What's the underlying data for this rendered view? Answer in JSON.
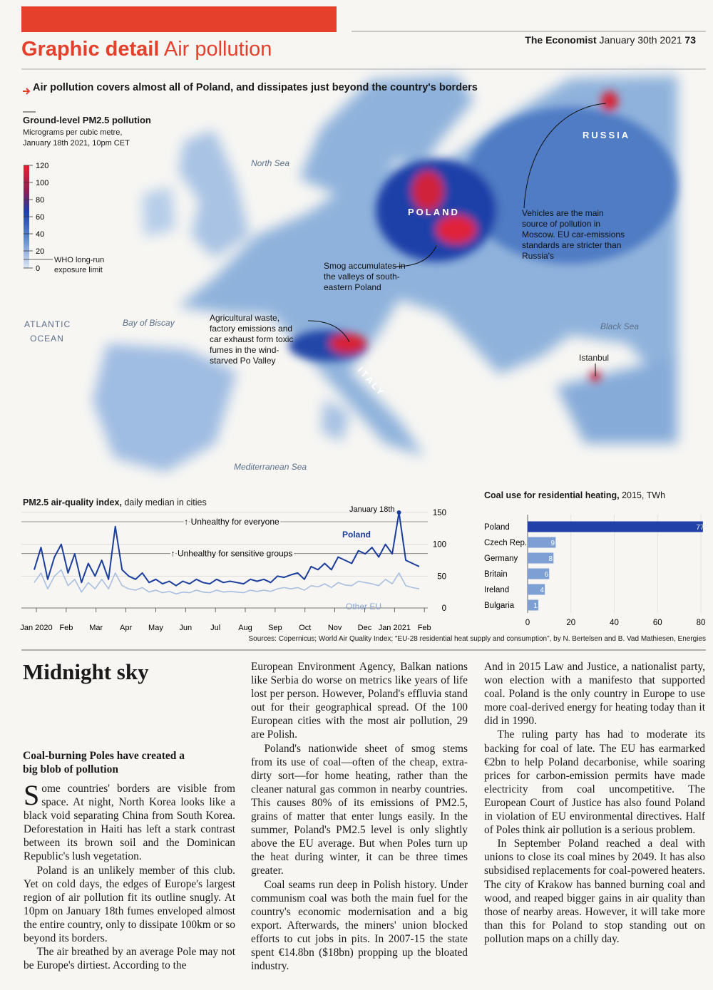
{
  "header": {
    "section": "Graphic detail",
    "topic": "Air pollution",
    "publication": "The Economist",
    "date": "January 30th 2021",
    "page": "73"
  },
  "map": {
    "headline": "Air pollution covers almost all of Poland, and dissipates just beyond the country's borders",
    "legend": {
      "title": "Ground-level PM2.5 pollution",
      "subtitle": "Micrograms per cubic metre, January 18th 2021, 10pm CET",
      "ticks": [
        0,
        20,
        40,
        60,
        80,
        100,
        120
      ],
      "limit_value": 10,
      "limit_label": "WHO long-run exposure limit"
    },
    "places": [
      "North Sea",
      "ATLANTIC OCEAN",
      "Bay of Biscay",
      "Mediterranean Sea",
      "Black Sea",
      "POLAND",
      "RUSSIA",
      "ITALY",
      "Istanbul"
    ],
    "annotations": [
      "Vehicles are the main source of pollution in Moscow. EU car-emissions standards are stricter than Russia's",
      "Smog accumulates in the valleys of south-eastern Poland",
      "Agricultural waste, factory emissions and car exhaust form toxic fumes in the wind-starved Po Valley"
    ]
  },
  "line_chart": {
    "type": "line",
    "title": "PM2.5 air-quality index,",
    "subtitle": "daily median in cities",
    "month_labels": [
      "Jan 2020",
      "Feb",
      "Mar",
      "Apr",
      "May",
      "Jun",
      "Jul",
      "Aug",
      "Sep",
      "Oct",
      "Nov",
      "Dec",
      "Jan 2021",
      "Feb"
    ],
    "series": [
      {
        "name": "Other EU",
        "color": "#a9bfe0",
        "values": [
          40,
          55,
          30,
          50,
          60,
          35,
          45,
          25,
          40,
          30,
          45,
          30,
          55,
          35,
          30,
          28,
          32,
          25,
          28,
          24,
          26,
          22,
          25,
          24,
          28,
          25,
          24,
          28,
          25,
          26,
          25,
          24,
          28,
          26,
          28,
          26,
          30,
          32,
          30,
          32,
          28,
          35,
          33,
          38,
          32,
          40,
          36,
          35,
          42,
          40,
          38,
          35,
          45,
          38,
          55,
          35,
          32,
          30
        ]
      },
      {
        "name": "Poland",
        "color": "#1b3d9c",
        "values": [
          60,
          95,
          45,
          80,
          100,
          55,
          85,
          40,
          70,
          50,
          75,
          45,
          128,
          60,
          50,
          45,
          55,
          40,
          45,
          38,
          42,
          35,
          42,
          38,
          45,
          40,
          38,
          45,
          40,
          42,
          40,
          38,
          45,
          42,
          45,
          40,
          50,
          48,
          52,
          55,
          45,
          65,
          60,
          70,
          60,
          80,
          75,
          70,
          90,
          85,
          95,
          80,
          100,
          85,
          150,
          75,
          70,
          65
        ]
      }
    ],
    "ylim": [
      0,
      150
    ],
    "yticks": [
      0,
      50,
      100,
      150
    ],
    "thresholds": [
      {
        "value": 150,
        "label": "Unhealthy for everyone"
      },
      {
        "value": 100,
        "label": "Unhealthy for sensitive groups"
      }
    ],
    "peak_label": "January 18th"
  },
  "bar_chart": {
    "type": "bar",
    "orientation": "horizontal",
    "title": "Coal use for residential heating,",
    "subtitle": "2015, TWh",
    "categories": [
      "Poland",
      "Czech Rep.",
      "Germany",
      "Britain",
      "Ireland",
      "Bulgaria"
    ],
    "values": [
      77,
      9,
      8,
      6,
      4,
      1
    ],
    "color": "#2140a8",
    "xlim": [
      0,
      80
    ],
    "xticks": [
      0,
      20,
      40,
      60,
      80
    ]
  },
  "sources": "Sources: Copernicus; World Air Quality Index; \"EU-28 residential heat supply and consumption\", by N. Bertelsen and B. Vad Mathiesen, Energies",
  "article": {
    "title": "Midnight sky",
    "standfirst": "Coal-burning Poles have created a big blob of pollution",
    "columns": [
      [
        "Some countries' borders are visible from space. At night, North Korea looks like a black void separating China from South Korea. Deforestation in Haiti has left a stark contrast between its brown soil and the Dominican Republic's lush vegetation.",
        "Poland is an unlikely member of this club. Yet on cold days, the edges of Europe's largest region of air pollution fit its outline snugly. At 10pm on January 18th fumes enveloped almost the entire country, only to dissipate 100km or so beyond its borders.",
        "The air breathed by an average Pole may not be Europe's dirtiest. According to the"
      ],
      [
        "European Environment Agency, Balkan nations like Serbia do worse on metrics like years of life lost per person. However, Poland's effluvia stand out for their geographical spread. Of the 100 European cities with the most air pollution, 29 are Polish.",
        "Poland's nationwide sheet of smog stems from its use of coal—often of the cheap, extra-dirty sort—for home heating, rather than the cleaner natural gas common in nearby countries. This causes 80% of its emissions of PM2.5, grains of matter that enter lungs easily. In the summer, Poland's PM2.5 level is only slightly above the EU average. But when Poles turn up the heat during winter, it can be three times greater.",
        "Coal seams run deep in Polish history. Under communism coal was both the main fuel for the country's economic modernisation and a big export. Afterwards, the miners' union blocked efforts to cut jobs in pits. In 2007-15 the state spent €14.8bn ($18bn) propping up the bloated industry."
      ],
      [
        "And in 2015 Law and Justice, a nationalist party, won election with a manifesto that supported coal. Poland is the only country in Europe to use more coal-derived energy for heating today than it did in 1990.",
        "The ruling party has had to moderate its backing for coal of late. The EU has earmarked €2bn to help Poland decarbonise, while soaring prices for carbon-emission permits have made electricity from coal uncompetitive. The European Court of Justice has also found Poland in violation of EU environmental directives. Half of Poles think air pollution is a serious problem.",
        "In September Poland reached a deal with unions to close its coal mines by 2049. It has also subsidised replacements for coal-powered heaters. The city of Krakow has banned burning coal and wood, and reaped bigger gains in air quality than those of nearby areas. However, it will take more than this for Poland to stop standing out on pollution maps on a chilly day."
      ]
    ]
  }
}
